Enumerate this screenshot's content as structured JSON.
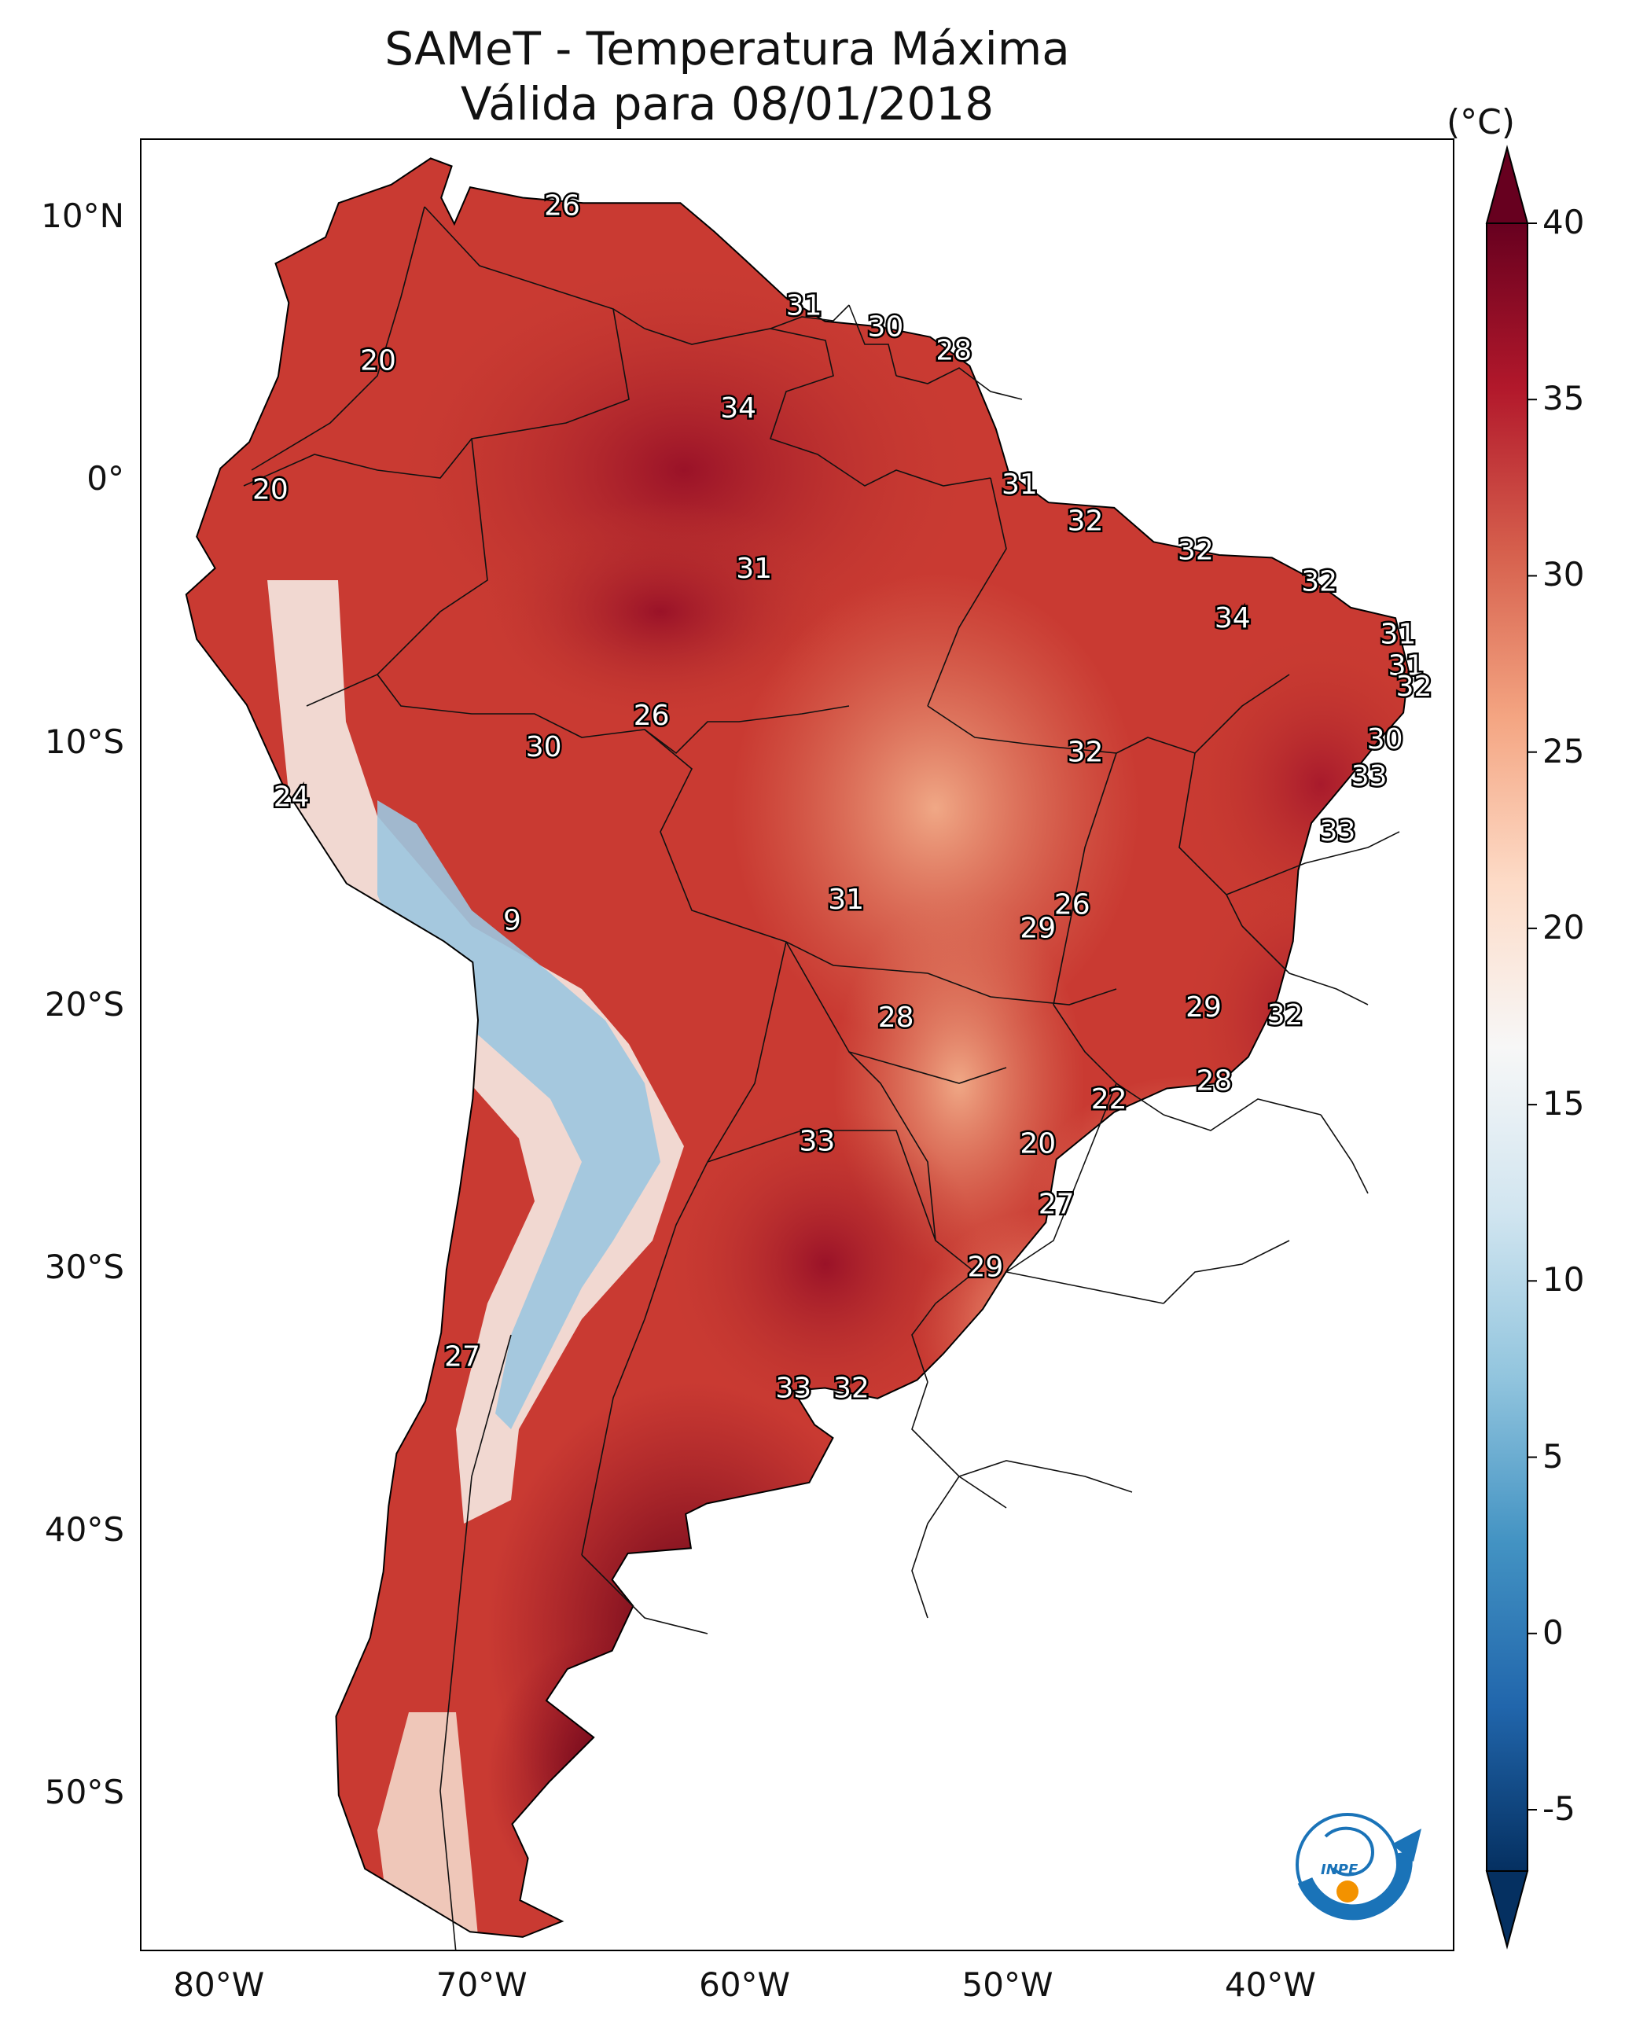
{
  "title": {
    "line1": "SAMeT - Temperatura Máxima",
    "line2": "Válida para 08/01/2018"
  },
  "lat_ticks": [
    "10°N",
    "0°",
    "10°S",
    "20°S",
    "30°S",
    "40°S",
    "50°S"
  ],
  "lon_ticks": [
    "80°W",
    "70°W",
    "60°W",
    "50°W",
    "40°W"
  ],
  "colorbar": {
    "unit": "(°C)",
    "ticks": [
      "40",
      "35",
      "30",
      "25",
      "20",
      "15",
      "10",
      "5",
      "0",
      "-5"
    ],
    "range": [
      -5,
      40
    ],
    "extend": "both",
    "colormap": "RdBu_r",
    "colors": [
      "#053061",
      "#2166ac",
      "#4393c3",
      "#92c5de",
      "#d1e5f0",
      "#f7f7f7",
      "#fddbc7",
      "#f4a582",
      "#d6604d",
      "#b2182b",
      "#67001f"
    ]
  },
  "value_labels": [
    {
      "text": "26",
      "lon": -67,
      "lat": 10.5
    },
    {
      "text": "31",
      "lon": -57.8,
      "lat": 6.7
    },
    {
      "text": "30",
      "lon": -54.7,
      "lat": 5.9
    },
    {
      "text": "28",
      "lon": -52.1,
      "lat": 5.0
    },
    {
      "text": "20",
      "lon": -74,
      "lat": 4.6
    },
    {
      "text": "34",
      "lon": -60.3,
      "lat": 2.8
    },
    {
      "text": "20",
      "lon": -78.1,
      "lat": -0.3
    },
    {
      "text": "31",
      "lon": -49.6,
      "lat": -0.1
    },
    {
      "text": "32",
      "lon": -47.1,
      "lat": -1.5
    },
    {
      "text": "32",
      "lon": -42.9,
      "lat": -2.6
    },
    {
      "text": "31",
      "lon": -59.7,
      "lat": -3.3
    },
    {
      "text": "32",
      "lon": -38.2,
      "lat": -3.8
    },
    {
      "text": "34",
      "lon": -41.5,
      "lat": -5.2
    },
    {
      "text": "31",
      "lon": -35.2,
      "lat": -5.8
    },
    {
      "text": "31",
      "lon": -34.9,
      "lat": -7.0
    },
    {
      "text": "32",
      "lon": -34.6,
      "lat": -7.8
    },
    {
      "text": "26",
      "lon": -63.6,
      "lat": -8.9
    },
    {
      "text": "30",
      "lon": -35.7,
      "lat": -9.8
    },
    {
      "text": "30",
      "lon": -67.7,
      "lat": -10.1
    },
    {
      "text": "32",
      "lon": -47.1,
      "lat": -10.3
    },
    {
      "text": "33",
      "lon": -36.3,
      "lat": -11.2
    },
    {
      "text": "24",
      "lon": -77.3,
      "lat": -12.0
    },
    {
      "text": "33",
      "lon": -37.5,
      "lat": -13.3
    },
    {
      "text": "31",
      "lon": -56.2,
      "lat": -15.9
    },
    {
      "text": "26",
      "lon": -47.6,
      "lat": -16.1
    },
    {
      "text": "29",
      "lon": -48.9,
      "lat": -17.0
    },
    {
      "text": "9",
      "lon": -68.9,
      "lat": -16.7
    },
    {
      "text": "29",
      "lon": -42.6,
      "lat": -20.0
    },
    {
      "text": "32",
      "lon": -39.5,
      "lat": -20.3
    },
    {
      "text": "28",
      "lon": -54.3,
      "lat": -20.4
    },
    {
      "text": "28",
      "lon": -42.2,
      "lat": -22.8
    },
    {
      "text": "22",
      "lon": -46.2,
      "lat": -23.5
    },
    {
      "text": "33",
      "lon": -57.3,
      "lat": -25.1
    },
    {
      "text": "20",
      "lon": -48.9,
      "lat": -25.2
    },
    {
      "text": "27",
      "lon": -48.2,
      "lat": -27.5
    },
    {
      "text": "29",
      "lon": -50.9,
      "lat": -29.9
    },
    {
      "text": "27",
      "lon": -70.8,
      "lat": -33.3
    },
    {
      "text": "33",
      "lon": -58.2,
      "lat": -34.5
    },
    {
      "text": "32",
      "lon": -56.0,
      "lat": -34.5
    }
  ],
  "logo": {
    "text": "INPE",
    "colors": {
      "blue": "#1a73b8",
      "orange": "#f39200"
    }
  }
}
